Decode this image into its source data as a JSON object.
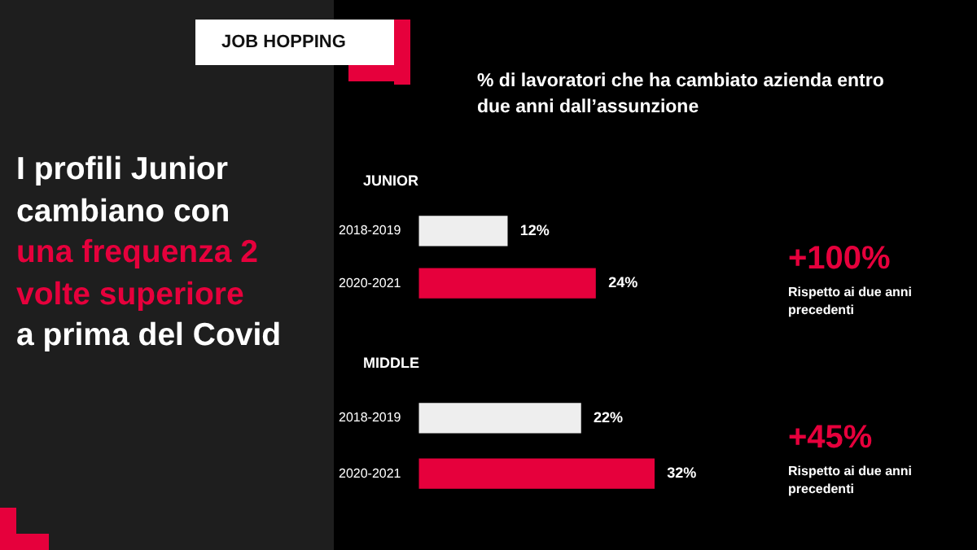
{
  "chart_data": [
    {
      "type": "bar",
      "orientation": "horizontal",
      "title": "% di lavoratori che ha cambiato azienda entro due anni dall’assunzione",
      "subtitle": "JUNIOR",
      "categories": [
        "2018-2019",
        "2020-2021"
      ],
      "values": [
        12,
        24
      ],
      "colors": [
        "#eeeeee",
        "#e6003c"
      ],
      "value_labels": [
        "12%",
        "24%"
      ],
      "annotations": [
        "JOB HOPPING",
        "I profili Junior cambiano con",
        "una frequenza 2 volte superiore",
        "a prima del Covid",
        "+100%",
        "Rispetto ai due anni precedenti"
      ]
    },
    {
      "type": "bar",
      "orientation": "horizontal",
      "subtitle": "MIDDLE",
      "categories": [
        "2018-2019",
        "2020-2021"
      ],
      "values": [
        22,
        32
      ],
      "colors": [
        "#eeeeee",
        "#e6003c"
      ],
      "value_labels": [
        "22%",
        "32%"
      ],
      "annotations": [
        "+45%",
        "Rispetto ai due anni precedenti"
      ]
    }
  ]
}
